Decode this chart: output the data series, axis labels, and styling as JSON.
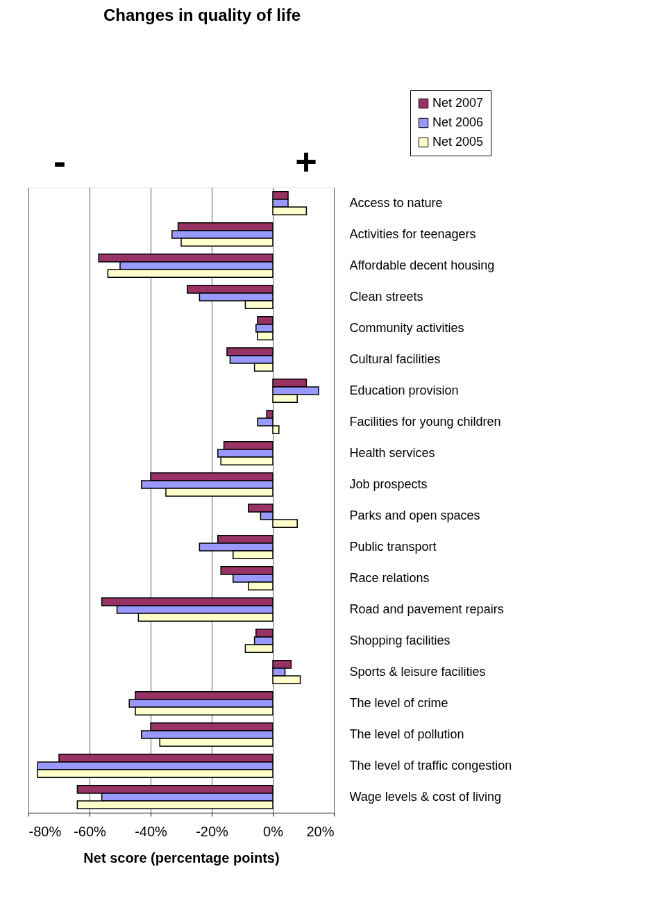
{
  "chart_data": {
    "type": "bar",
    "orientation": "horizontal",
    "title": "Changes in quality of life",
    "xlabel": "Net score (percentage points)",
    "annotations": [
      "-",
      "+"
    ],
    "categories": [
      "Access to nature",
      "Activities for teenagers",
      "Affordable decent housing",
      "Clean streets",
      "Community activities",
      "Cultural facilities",
      "Education provision",
      "Facilities for young children",
      "Health services",
      "Job prospects",
      "Parks and open spaces",
      "Public transport",
      "Race relations",
      "Road and pavement repairs",
      "Shopping facilities",
      "Sports & leisure facilities",
      "The level of crime",
      "The level of pollution",
      "The level of traffic congestion",
      "Wage levels & cost of living"
    ],
    "series": [
      {
        "name": "Net 2007",
        "color": "#993366",
        "values": [
          5,
          -31,
          -57,
          -28,
          -5,
          -15,
          11,
          -2,
          -16,
          -40,
          -8,
          -18,
          -17,
          -56,
          -5.5,
          6,
          -45,
          -40,
          -70,
          -64
        ]
      },
      {
        "name": "Net 2006",
        "color": "#9999ff",
        "values": [
          5,
          -33,
          -50,
          -24,
          -5.5,
          -14,
          15,
          -5,
          -18,
          -43,
          -4,
          -24,
          -13,
          -51,
          -6,
          4,
          -47,
          -43,
          -77,
          -56
        ]
      },
      {
        "name": "Net 2005",
        "color": "#ffffcc",
        "values": [
          11,
          -30,
          -54,
          -9,
          -5,
          -6,
          8,
          2,
          -17,
          -35,
          8,
          -13,
          -8,
          -44,
          -9,
          9,
          -45,
          -37,
          -77,
          -64
        ]
      }
    ],
    "xlim": [
      -80,
      20
    ],
    "xticks": [
      {
        "value": -80,
        "label": "-80%"
      },
      {
        "value": -60,
        "label": "-60%"
      },
      {
        "value": -40,
        "label": "-40%"
      },
      {
        "value": -20,
        "label": "-20%"
      },
      {
        "value": 0,
        "label": "0%"
      },
      {
        "value": 20,
        "label": "20%"
      }
    ],
    "grid": "x",
    "legend": "top right"
  }
}
